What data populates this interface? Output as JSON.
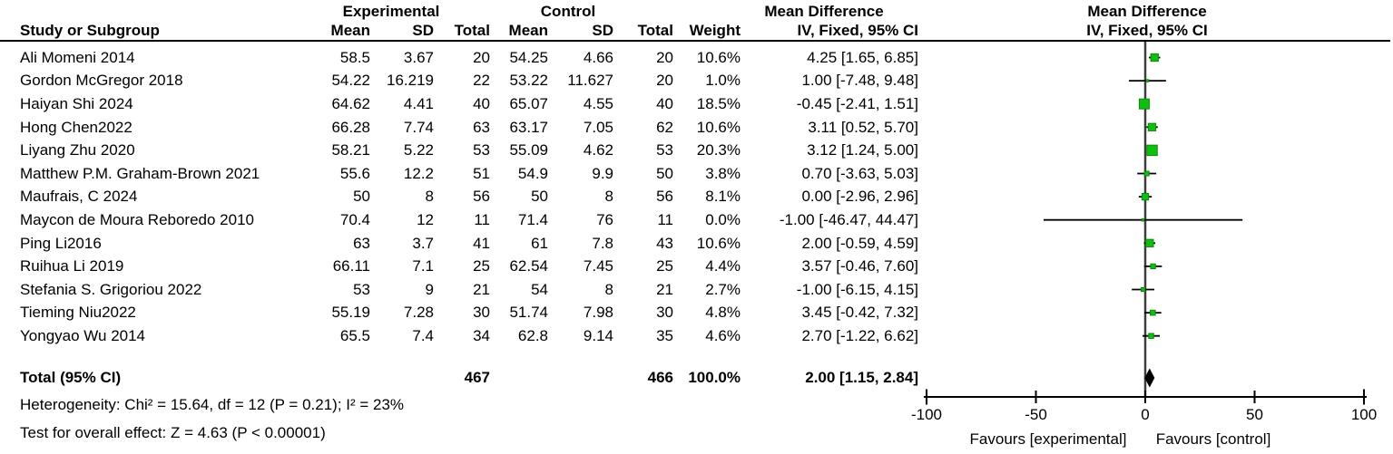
{
  "table": {
    "group_headers": {
      "experimental": "Experimental",
      "control": "Control",
      "md_text": "Mean Difference",
      "md_plot": "Mean Difference"
    },
    "col_headers": {
      "study": "Study or Subgroup",
      "mean_e": "Mean",
      "sd_e": "SD",
      "total_e": "Total",
      "mean_c": "Mean",
      "sd_c": "SD",
      "total_c": "Total",
      "weight": "Weight",
      "iv_text": "IV, Fixed, 95% CI",
      "iv_plot": "IV, Fixed, 95% CI"
    },
    "rows": [
      {
        "study": "Ali Momeni 2014",
        "mean_e": "58.5",
        "sd_e": "3.67",
        "total_e": "20",
        "mean_c": "54.25",
        "sd_c": "4.66",
        "total_c": "20",
        "weight": "10.6%",
        "ci": "4.25 [1.65, 6.85]"
      },
      {
        "study": "Gordon McGregor 2018",
        "mean_e": "54.22",
        "sd_e": "16.219",
        "total_e": "22",
        "mean_c": "53.22",
        "sd_c": "11.627",
        "total_c": "20",
        "weight": "1.0%",
        "ci": "1.00 [-7.48, 9.48]"
      },
      {
        "study": "Haiyan Shi 2024",
        "mean_e": "64.62",
        "sd_e": "4.41",
        "total_e": "40",
        "mean_c": "65.07",
        "sd_c": "4.55",
        "total_c": "40",
        "weight": "18.5%",
        "ci": "-0.45 [-2.41, 1.51]"
      },
      {
        "study": "Hong Chen2022",
        "mean_e": "66.28",
        "sd_e": "7.74",
        "total_e": "63",
        "mean_c": "63.17",
        "sd_c": "7.05",
        "total_c": "62",
        "weight": "10.6%",
        "ci": "3.11 [0.52, 5.70]"
      },
      {
        "study": "Liyang Zhu 2020",
        "mean_e": "58.21",
        "sd_e": "5.22",
        "total_e": "53",
        "mean_c": "55.09",
        "sd_c": "4.62",
        "total_c": "53",
        "weight": "20.3%",
        "ci": "3.12 [1.24, 5.00]"
      },
      {
        "study": "Matthew P.M. Graham-Brown 2021",
        "mean_e": "55.6",
        "sd_e": "12.2",
        "total_e": "51",
        "mean_c": "54.9",
        "sd_c": "9.9",
        "total_c": "50",
        "weight": "3.8%",
        "ci": "0.70 [-3.63, 5.03]"
      },
      {
        "study": "Maufrais, C 2024",
        "mean_e": "50",
        "sd_e": "8",
        "total_e": "56",
        "mean_c": "50",
        "sd_c": "8",
        "total_c": "56",
        "weight": "8.1%",
        "ci": "0.00 [-2.96, 2.96]"
      },
      {
        "study": "Maycon de Moura Reboredo 2010",
        "mean_e": "70.4",
        "sd_e": "12",
        "total_e": "11",
        "mean_c": "71.4",
        "sd_c": "76",
        "total_c": "11",
        "weight": "0.0%",
        "ci": "-1.00 [-46.47, 44.47]"
      },
      {
        "study": "Ping Li2016",
        "mean_e": "63",
        "sd_e": "3.7",
        "total_e": "41",
        "mean_c": "61",
        "sd_c": "7.8",
        "total_c": "43",
        "weight": "10.6%",
        "ci": "2.00 [-0.59, 4.59]"
      },
      {
        "study": "Ruihua Li 2019",
        "mean_e": "66.11",
        "sd_e": "7.1",
        "total_e": "25",
        "mean_c": "62.54",
        "sd_c": "7.45",
        "total_c": "25",
        "weight": "4.4%",
        "ci": "3.57 [-0.46, 7.60]"
      },
      {
        "study": "Stefania S. Grigoriou 2022",
        "mean_e": "53",
        "sd_e": "9",
        "total_e": "21",
        "mean_c": "54",
        "sd_c": "8",
        "total_c": "21",
        "weight": "2.7%",
        "ci": "-1.00 [-6.15, 4.15]"
      },
      {
        "study": "Tieming Niu2022",
        "mean_e": "55.19",
        "sd_e": "7.28",
        "total_e": "30",
        "mean_c": "51.74",
        "sd_c": "7.98",
        "total_c": "30",
        "weight": "4.8%",
        "ci": "3.45 [-0.42, 7.32]"
      },
      {
        "study": "Yongyao Wu 2014",
        "mean_e": "65.5",
        "sd_e": "7.4",
        "total_e": "34",
        "mean_c": "62.8",
        "sd_c": "9.14",
        "total_c": "35",
        "weight": "4.6%",
        "ci": "2.70 [-1.22, 6.62]"
      }
    ],
    "total_row": {
      "label": "Total (95% CI)",
      "total_e": "467",
      "total_c": "466",
      "weight": "100.0%",
      "ci": "2.00 [1.15, 2.84]"
    },
    "heterogeneity": "Heterogeneity: Chi² = 15.64, df = 12 (P = 0.21); I² = 23%",
    "overall_effect": "Test for overall effect: Z = 4.63 (P < 0.00001)"
  },
  "chart_data": {
    "type": "forest",
    "effect_measure": "Mean Difference IV, Fixed, 95% CI",
    "studies": [
      {
        "name": "Ali Momeni 2014",
        "md": 4.25,
        "lo": 1.65,
        "hi": 6.85,
        "weight_pct": 10.6
      },
      {
        "name": "Gordon McGregor 2018",
        "md": 1.0,
        "lo": -7.48,
        "hi": 9.48,
        "weight_pct": 1.0
      },
      {
        "name": "Haiyan Shi 2024",
        "md": -0.45,
        "lo": -2.41,
        "hi": 1.51,
        "weight_pct": 18.5
      },
      {
        "name": "Hong Chen2022",
        "md": 3.11,
        "lo": 0.52,
        "hi": 5.7,
        "weight_pct": 10.6
      },
      {
        "name": "Liyang Zhu 2020",
        "md": 3.12,
        "lo": 1.24,
        "hi": 5.0,
        "weight_pct": 20.3
      },
      {
        "name": "Matthew P.M. Graham-Brown 2021",
        "md": 0.7,
        "lo": -3.63,
        "hi": 5.03,
        "weight_pct": 3.8
      },
      {
        "name": "Maufrais, C 2024",
        "md": 0.0,
        "lo": -2.96,
        "hi": 2.96,
        "weight_pct": 8.1
      },
      {
        "name": "Maycon de Moura Reboredo 2010",
        "md": -1.0,
        "lo": -46.47,
        "hi": 44.47,
        "weight_pct": 0.0
      },
      {
        "name": "Ping Li2016",
        "md": 2.0,
        "lo": -0.59,
        "hi": 4.59,
        "weight_pct": 10.6
      },
      {
        "name": "Ruihua Li 2019",
        "md": 3.57,
        "lo": -0.46,
        "hi": 7.6,
        "weight_pct": 4.4
      },
      {
        "name": "Stefania S. Grigoriou 2022",
        "md": -1.0,
        "lo": -6.15,
        "hi": 4.15,
        "weight_pct": 2.7
      },
      {
        "name": "Tieming Niu2022",
        "md": 3.45,
        "lo": -0.42,
        "hi": 7.32,
        "weight_pct": 4.8
      },
      {
        "name": "Yongyao Wu 2014",
        "md": 2.7,
        "lo": -1.22,
        "hi": 6.62,
        "weight_pct": 4.6
      }
    ],
    "total": {
      "label": "Total (95% CI)",
      "md": 2.0,
      "lo": 1.15,
      "hi": 2.84
    },
    "axis": {
      "xlim": [
        -100,
        100
      ],
      "ticks": [
        -100,
        -50,
        0,
        50,
        100
      ],
      "tick_labels": [
        "-100",
        "-50",
        "0",
        "50",
        "100"
      ]
    },
    "favours_left": "Favours [experimental]",
    "favours_right": "Favours [control]",
    "marker_color": "#10be10",
    "marker_border": "#0a8c0a",
    "line_color": "#000000",
    "zero_line_color": "#3d3d3d"
  }
}
